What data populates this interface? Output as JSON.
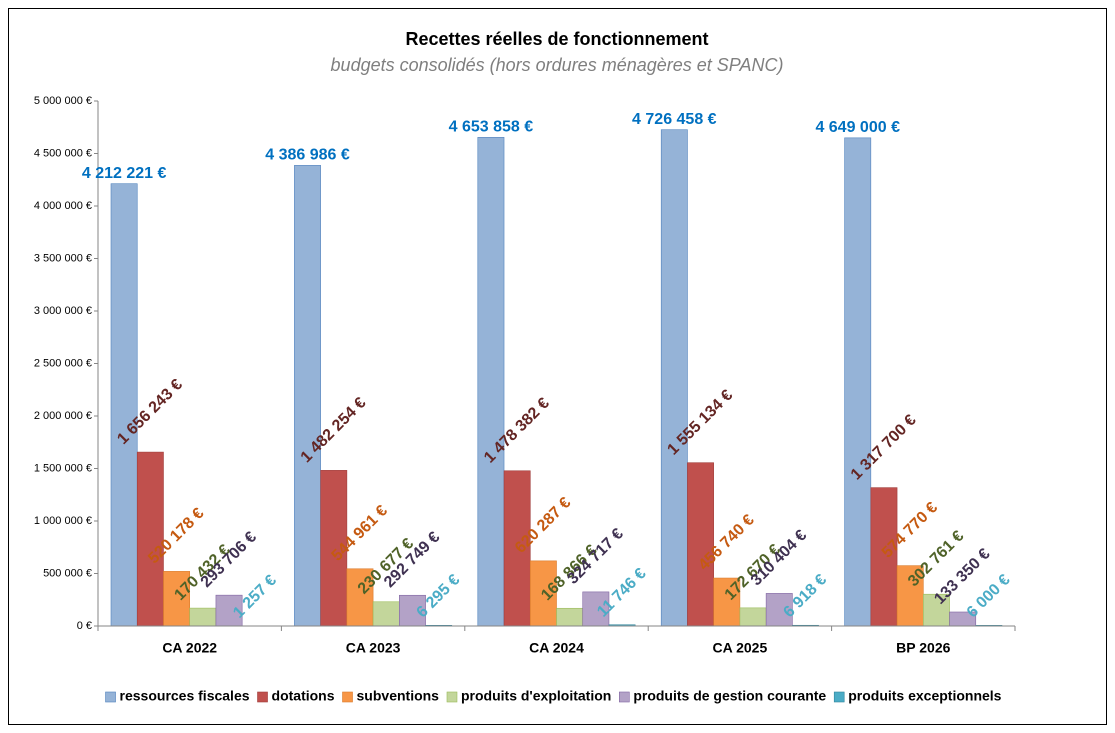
{
  "chart_data": {
    "type": "bar",
    "title": "Recettes réelles de fonctionnement",
    "subtitle": "budgets consolidés (hors ordures ménagères et SPANC)",
    "categories": [
      "CA 2022",
      "CA 2023",
      "CA 2024",
      "CA 2025",
      "BP 2026"
    ],
    "series": [
      {
        "name": "ressources fiscales",
        "color": "#95b3d7",
        "stroke": "#4f81bd",
        "label_color": "#0070c0",
        "label_rotation": 0,
        "values": [
          4212221,
          4386986,
          4653858,
          4726458,
          4649000
        ],
        "value_labels": [
          "4 212 221 €",
          "4 386 986 €",
          "4 653 858 €",
          "4 726 458 €",
          "4 649 000 €"
        ]
      },
      {
        "name": "dotations",
        "color": "#c0504d",
        "stroke": "#a03c3a",
        "label_color": "#632523",
        "label_rotation": -45,
        "values": [
          1656243,
          1482254,
          1478382,
          1555134,
          1317700
        ],
        "value_labels": [
          "1 656 243 €",
          "1 482 254 €",
          "1 478 382 €",
          "1 555 134 €",
          "1 317 700 €"
        ]
      },
      {
        "name": "subventions",
        "color": "#f79646",
        "stroke": "#d97b2c",
        "label_color": "#c55a11",
        "label_rotation": -45,
        "values": [
          520178,
          544961,
          620287,
          456740,
          574770
        ],
        "value_labels": [
          "520 178 €",
          "544 961 €",
          "620 287 €",
          "456 740 €",
          "574 770 €"
        ]
      },
      {
        "name": "produits d'exploitation",
        "color": "#c3d69b",
        "stroke": "#9bbb59",
        "label_color": "#4f6228",
        "label_rotation": -45,
        "values": [
          170432,
          230677,
          168866,
          172670,
          302761
        ],
        "value_labels": [
          "170 432 €",
          "230 677 €",
          "168 866 €",
          "172 670 €",
          "302 761 €"
        ]
      },
      {
        "name": "produits de gestion courante",
        "color": "#b3a2c7",
        "stroke": "#8064a2",
        "label_color": "#3f3151",
        "label_rotation": -45,
        "values": [
          293706,
          292749,
          324717,
          310404,
          133350
        ],
        "value_labels": [
          "293 706 €",
          "292 749 €",
          "324 717 €",
          "310 404 €",
          "133 350 €"
        ]
      },
      {
        "name": "produits exceptionnels",
        "color": "#4bacc6",
        "stroke": "#31859c",
        "label_color": "#4bacc6",
        "label_rotation": -45,
        "values": [
          1257,
          6295,
          11746,
          6918,
          6000
        ],
        "value_labels": [
          "1 257 €",
          "6 295 €",
          "11 746 €",
          "6 918 €",
          "6 000 €"
        ]
      }
    ],
    "ylim": [
      0,
      5000000
    ],
    "yticks": [
      {
        "value": 0,
        "label": "0 €"
      },
      {
        "value": 500000,
        "label": "500 000 €"
      },
      {
        "value": 1000000,
        "label": "1 000 000 €"
      },
      {
        "value": 1500000,
        "label": "1 500 000 €"
      },
      {
        "value": 2000000,
        "label": "2 000 000 €"
      },
      {
        "value": 2500000,
        "label": "2 500 000 €"
      },
      {
        "value": 3000000,
        "label": "3 000 000 €"
      },
      {
        "value": 3500000,
        "label": "3 500 000 €"
      },
      {
        "value": 4000000,
        "label": "4 000 000 €"
      },
      {
        "value": 4500000,
        "label": "4 500 000 €"
      },
      {
        "value": 5000000,
        "label": "5 000 000 €"
      }
    ],
    "grid": false,
    "legend": "bottom"
  }
}
